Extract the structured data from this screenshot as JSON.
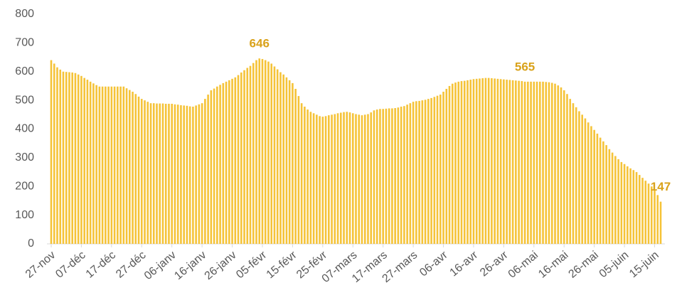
{
  "chart_data": {
    "type": "bar",
    "color": "#f5c338",
    "ylim": [
      0,
      800
    ],
    "yticks": [
      0,
      100,
      200,
      300,
      400,
      500,
      600,
      700,
      800
    ],
    "grid": false,
    "labeled_points": [
      69,
      157,
      202
    ],
    "categories": [
      "27-nov",
      null,
      null,
      null,
      null,
      null,
      null,
      null,
      null,
      null,
      "07-déc",
      null,
      null,
      null,
      null,
      null,
      null,
      null,
      null,
      null,
      "17-déc",
      null,
      null,
      null,
      null,
      null,
      null,
      null,
      null,
      null,
      "27-déc",
      null,
      null,
      null,
      null,
      null,
      null,
      null,
      null,
      null,
      "06-janv",
      null,
      null,
      null,
      null,
      null,
      null,
      null,
      null,
      null,
      "16-janv",
      null,
      null,
      null,
      null,
      null,
      null,
      null,
      null,
      null,
      "26-janv",
      null,
      null,
      null,
      null,
      null,
      null,
      null,
      null,
      null,
      "05-févr",
      null,
      null,
      null,
      null,
      null,
      null,
      null,
      null,
      null,
      "15-févr",
      null,
      null,
      null,
      null,
      null,
      null,
      null,
      null,
      null,
      "25-févr",
      null,
      null,
      null,
      null,
      null,
      null,
      null,
      null,
      null,
      "07-mars",
      null,
      null,
      null,
      null,
      null,
      null,
      null,
      null,
      null,
      "17-mars",
      null,
      null,
      null,
      null,
      null,
      null,
      null,
      null,
      null,
      "27-mars",
      null,
      null,
      null,
      null,
      null,
      null,
      null,
      null,
      null,
      "06-avr",
      null,
      null,
      null,
      null,
      null,
      null,
      null,
      null,
      null,
      "16-avr",
      null,
      null,
      null,
      null,
      null,
      null,
      null,
      null,
      null,
      "26-avr",
      null,
      null,
      null,
      null,
      null,
      null,
      null,
      null,
      null,
      "06-mai",
      null,
      null,
      null,
      null,
      null,
      null,
      null,
      null,
      null,
      "16-mai",
      null,
      null,
      null,
      null,
      null,
      null,
      null,
      null,
      null,
      "26-mai",
      null,
      null,
      null,
      null,
      null,
      null,
      null,
      null,
      null,
      "05-juin",
      null,
      null,
      null,
      null,
      null,
      null,
      null,
      null,
      null,
      "15-juin",
      null,
      null
    ],
    "values": [
      640,
      628,
      615,
      607,
      600,
      599,
      598,
      597,
      595,
      590,
      585,
      578,
      572,
      565,
      559,
      553,
      548,
      548,
      548,
      548,
      548,
      548,
      548,
      548,
      548,
      542,
      536,
      530,
      522,
      513,
      505,
      500,
      495,
      490,
      490,
      489,
      489,
      489,
      488,
      488,
      488,
      486,
      485,
      483,
      482,
      481,
      479,
      478,
      482,
      486,
      490,
      505,
      520,
      535,
      541,
      548,
      554,
      560,
      565,
      570,
      575,
      580,
      588,
      597,
      605,
      613,
      620,
      630,
      640,
      646,
      644,
      640,
      635,
      628,
      618,
      608,
      598,
      590,
      580,
      570,
      560,
      540,
      515,
      490,
      478,
      468,
      460,
      455,
      450,
      445,
      443,
      445,
      448,
      450,
      452,
      455,
      457,
      459,
      460,
      458,
      455,
      452,
      450,
      448,
      450,
      452,
      458,
      465,
      468,
      470,
      470,
      471,
      472,
      472,
      473,
      475,
      478,
      480,
      485,
      490,
      495,
      497,
      498,
      500,
      502,
      505,
      508,
      512,
      516,
      520,
      530,
      540,
      550,
      558,
      562,
      565,
      567,
      568,
      570,
      572,
      574,
      575,
      576,
      577,
      578,
      578,
      577,
      576,
      575,
      574,
      573,
      572,
      571,
      570,
      569,
      568,
      567,
      565,
      565,
      565,
      565,
      565,
      565,
      565,
      564,
      563,
      561,
      558,
      552,
      545,
      535,
      522,
      505,
      490,
      476,
      462,
      450,
      437,
      423,
      410,
      397,
      384,
      370,
      357,
      344,
      330,
      318,
      306,
      295,
      285,
      278,
      270,
      263,
      257,
      250,
      240,
      230,
      220,
      210,
      200,
      188,
      170,
      147
    ]
  }
}
